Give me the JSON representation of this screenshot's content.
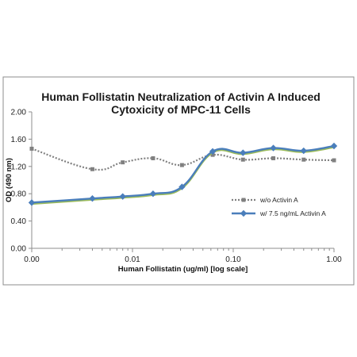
{
  "chart_data": {
    "type": "line",
    "title_lines": [
      "Human Follistatin Neutralization of Activin A Induced",
      "Cytoxicity of MPC-11 Cells"
    ],
    "xlabel": "Human Follistatin (ug/ml) [log scale]",
    "ylabel": "OD (490 nm)",
    "x_scale": "log",
    "x_ticks": [
      0.001,
      0.01,
      0.1,
      1
    ],
    "x_tick_labels": [
      "0.00",
      "0.01",
      "0.10",
      "1.00"
    ],
    "xlim": [
      0.001,
      1
    ],
    "y_ticks": [
      0,
      0.4,
      0.8,
      1.2,
      1.6,
      2.0
    ],
    "y_tick_labels": [
      "0.00",
      "0.40",
      "0.80",
      "1.20",
      "1.60",
      "2.00"
    ],
    "ylim": [
      0,
      2.0
    ],
    "grid": false,
    "legend_position": "right",
    "series": [
      {
        "name": "w/o Activin A",
        "color": "#808080",
        "style": "dotted",
        "marker": "square",
        "x": [
          0.001,
          0.004,
          0.008,
          0.016,
          0.031,
          0.0625,
          0.125,
          0.25,
          0.5,
          1.0
        ],
        "y": [
          1.46,
          1.16,
          1.26,
          1.32,
          1.22,
          1.37,
          1.3,
          1.32,
          1.3,
          1.29
        ]
      },
      {
        "name": "w/ 7.5 ng/mL Activin A",
        "color": "#4a7ebb",
        "style": "solid",
        "marker": "diamond",
        "x": [
          0.001,
          0.004,
          0.008,
          0.016,
          0.031,
          0.0625,
          0.125,
          0.25,
          0.5,
          1.0
        ],
        "y": [
          0.67,
          0.73,
          0.76,
          0.8,
          0.9,
          1.42,
          1.4,
          1.47,
          1.43,
          1.5
        ]
      }
    ]
  }
}
